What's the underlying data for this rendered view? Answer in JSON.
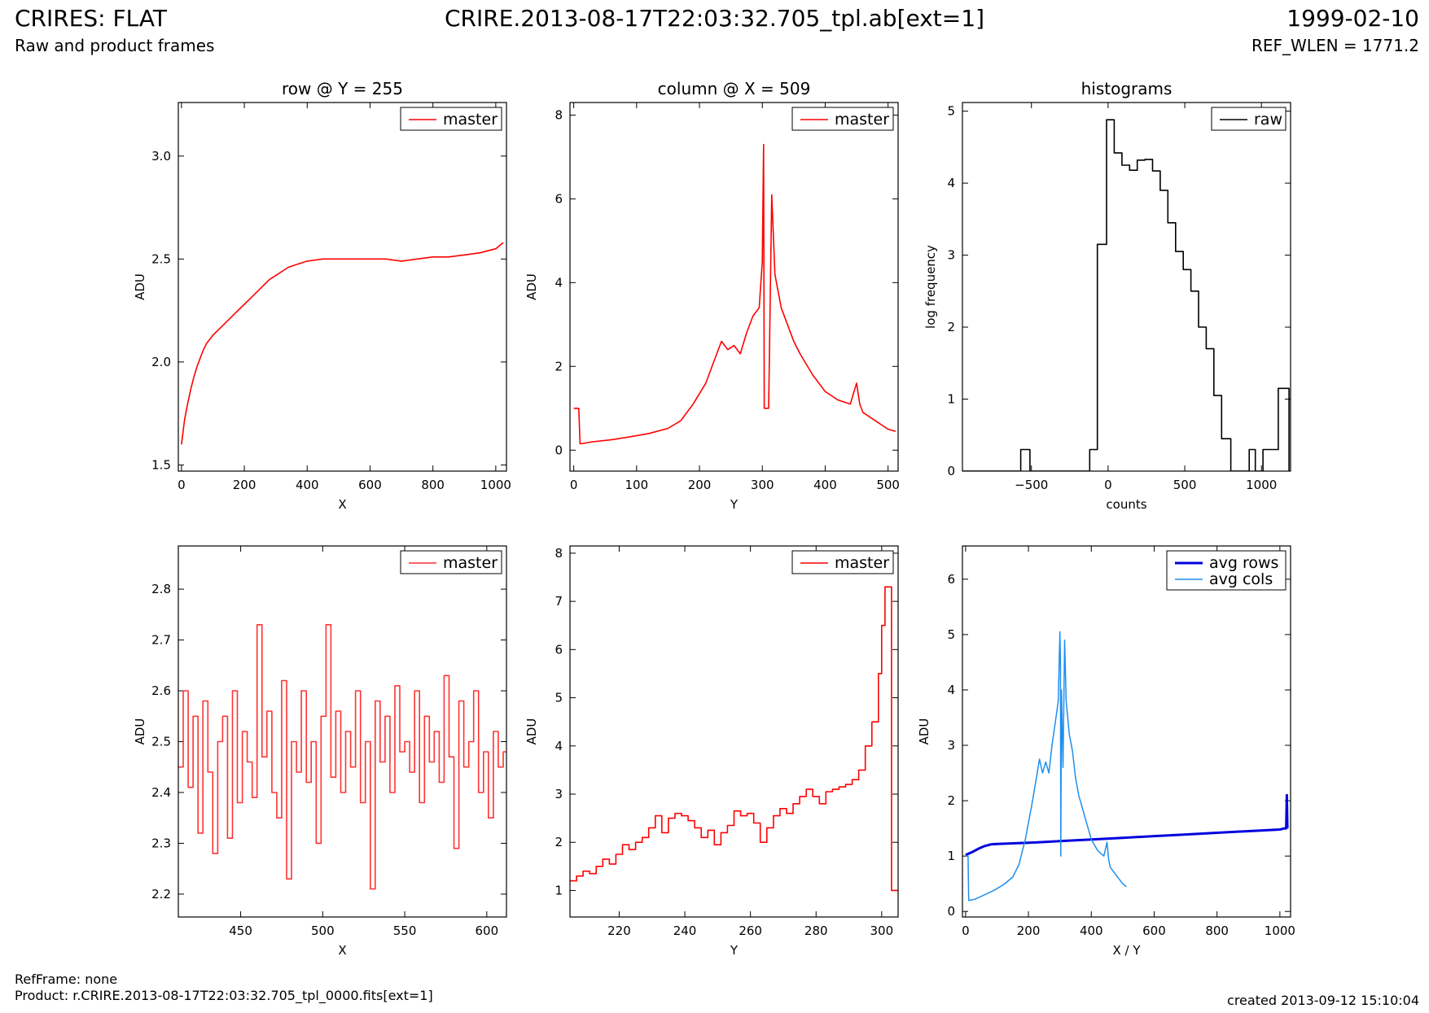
{
  "header": {
    "title": "CRIRES: FLAT",
    "subtitle": "Raw and product frames",
    "file": "CRIRE.2013-08-17T22:03:32.705_tpl.ab[ext=1]",
    "date": "1999-02-10",
    "ref_wlen": "REF_WLEN = 1771.2"
  },
  "footer": {
    "refframe": "RefFrame: none",
    "product": "Product: r.CRIRE.2013-08-17T22:03:32.705_tpl_0000.fits[ext=1]",
    "created": "created 2013-09-12 15:10:04"
  },
  "colors": {
    "master": "#ff0000",
    "master_zoom": "#ff3333",
    "raw": "#000000",
    "avg_rows": "#0000dd",
    "avg_cols": "#1e8fef"
  },
  "chart_data": [
    {
      "type": "line",
      "title": "row @ Y = 255",
      "xlabel": "X",
      "ylabel": "ADU",
      "xlim": [
        -10,
        1034
      ],
      "ylim": [
        1.47,
        3.26
      ],
      "xticks": [
        0,
        200,
        400,
        600,
        800,
        1000
      ],
      "yticks": [
        1.5,
        2.0,
        2.5,
        3.0
      ],
      "ytick_labels": [
        "1.5",
        "2.0",
        "2.5",
        "3.0"
      ],
      "legend": "top-right",
      "series": [
        {
          "name": "master",
          "color": "#ff0000",
          "x": [
            0,
            10,
            20,
            30,
            40,
            50,
            60,
            70,
            80,
            100,
            120,
            140,
            160,
            180,
            200,
            220,
            240,
            260,
            280,
            300,
            320,
            340,
            360,
            380,
            400,
            450,
            500,
            550,
            600,
            650,
            700,
            750,
            800,
            850,
            900,
            950,
            1000,
            1024
          ],
          "y": [
            1.6,
            1.72,
            1.8,
            1.87,
            1.93,
            1.98,
            2.02,
            2.06,
            2.09,
            2.13,
            2.16,
            2.19,
            2.22,
            2.25,
            2.28,
            2.31,
            2.34,
            2.37,
            2.4,
            2.42,
            2.44,
            2.46,
            2.47,
            2.48,
            2.49,
            2.5,
            2.5,
            2.5,
            2.5,
            2.5,
            2.49,
            2.5,
            2.51,
            2.51,
            2.52,
            2.53,
            2.55,
            2.58
          ]
        }
      ]
    },
    {
      "type": "line",
      "title": "column @ X = 509",
      "xlabel": "Y",
      "ylabel": "ADU",
      "xlim": [
        -6,
        516
      ],
      "ylim": [
        -0.5,
        8.3
      ],
      "xticks": [
        0,
        100,
        200,
        300,
        400,
        500
      ],
      "yticks": [
        0,
        2,
        4,
        6,
        8
      ],
      "legend": "top-right",
      "series": [
        {
          "name": "master",
          "color": "#ff0000",
          "x": [
            0,
            8,
            10,
            30,
            60,
            90,
            120,
            150,
            170,
            190,
            210,
            225,
            235,
            245,
            255,
            265,
            275,
            285,
            295,
            300,
            302,
            303,
            305,
            310,
            315,
            320,
            330,
            340,
            350,
            360,
            380,
            400,
            420,
            440,
            450,
            455,
            460,
            480,
            500,
            512
          ],
          "y": [
            1.0,
            1.0,
            0.15,
            0.2,
            0.25,
            0.32,
            0.4,
            0.52,
            0.7,
            1.1,
            1.6,
            2.2,
            2.6,
            2.4,
            2.5,
            2.3,
            2.8,
            3.2,
            3.4,
            4.5,
            7.3,
            1.0,
            1.0,
            1.0,
            6.1,
            4.2,
            3.4,
            3.0,
            2.6,
            2.3,
            1.8,
            1.4,
            1.2,
            1.1,
            1.6,
            1.1,
            0.9,
            0.7,
            0.5,
            0.45
          ]
        }
      ]
    },
    {
      "type": "line",
      "title": "histograms",
      "xlabel": "counts",
      "ylabel": "log frequency",
      "xlim": [
        -950,
        1190
      ],
      "ylim": [
        0,
        5.12
      ],
      "xticks": [
        -500,
        0,
        500,
        1000
      ],
      "xtick_labels": [
        "−500",
        "0",
        "500",
        "1000"
      ],
      "yticks": [
        0,
        1,
        2,
        3,
        4,
        5
      ],
      "legend": "top-right",
      "series": [
        {
          "name": "raw",
          "color": "#000000",
          "step": true,
          "x": [
            -950,
            -570,
            -570,
            -510,
            -510,
            -120,
            -120,
            -70,
            -70,
            -10,
            -10,
            40,
            40,
            90,
            90,
            140,
            140,
            190,
            190,
            240,
            240,
            290,
            290,
            340,
            340,
            390,
            390,
            440,
            440,
            490,
            490,
            540,
            540,
            590,
            590,
            640,
            640,
            690,
            690,
            740,
            740,
            800,
            800,
            920,
            920,
            960,
            960,
            1010,
            1010,
            1110,
            1110,
            1180,
            1180
          ],
          "y": [
            0,
            0,
            0.3,
            0.3,
            0,
            0,
            0.3,
            0.3,
            3.15,
            3.15,
            4.88,
            4.88,
            4.42,
            4.42,
            4.25,
            4.25,
            4.18,
            4.18,
            4.32,
            4.32,
            4.33,
            4.33,
            4.17,
            4.17,
            3.9,
            3.9,
            3.45,
            3.45,
            3.05,
            3.05,
            2.8,
            2.8,
            2.5,
            2.5,
            2.0,
            2.0,
            1.7,
            1.7,
            1.05,
            1.05,
            0.45,
            0.45,
            0,
            0,
            0.3,
            0.3,
            0,
            0,
            0.3,
            0.3,
            1.15,
            1.15,
            0
          ]
        }
      ]
    },
    {
      "type": "line",
      "title": "",
      "xlabel": "X",
      "ylabel": "ADU",
      "xlim": [
        412,
        612
      ],
      "ylim": [
        2.155,
        2.885
      ],
      "xticks": [
        450,
        500,
        550,
        600
      ],
      "yticks": [
        2.2,
        2.3,
        2.4,
        2.5,
        2.6,
        2.7,
        2.8
      ],
      "legend": "top-right",
      "series": [
        {
          "name": "master",
          "color": "#ff3333",
          "step": true,
          "x": [
            412,
            415,
            418,
            421,
            424,
            427,
            430,
            433,
            436,
            439,
            442,
            445,
            448,
            451,
            454,
            457,
            460,
            463,
            466,
            469,
            472,
            475,
            478,
            481,
            484,
            487,
            490,
            493,
            496,
            499,
            502,
            505,
            508,
            511,
            514,
            517,
            520,
            523,
            526,
            529,
            532,
            535,
            538,
            541,
            544,
            547,
            550,
            553,
            556,
            559,
            562,
            565,
            568,
            571,
            574,
            577,
            580,
            583,
            586,
            589,
            592,
            595,
            598,
            601,
            604,
            607,
            610,
            612
          ],
          "y": [
            2.45,
            2.6,
            2.41,
            2.55,
            2.32,
            2.58,
            2.44,
            2.28,
            2.5,
            2.55,
            2.31,
            2.6,
            2.38,
            2.52,
            2.46,
            2.39,
            2.73,
            2.47,
            2.56,
            2.4,
            2.35,
            2.62,
            2.23,
            2.5,
            2.44,
            2.6,
            2.42,
            2.5,
            2.3,
            2.55,
            2.73,
            2.43,
            2.56,
            2.4,
            2.52,
            2.45,
            2.6,
            2.38,
            2.5,
            2.21,
            2.58,
            2.46,
            2.55,
            2.4,
            2.61,
            2.48,
            2.5,
            2.44,
            2.6,
            2.38,
            2.55,
            2.46,
            2.52,
            2.42,
            2.63,
            2.47,
            2.29,
            2.58,
            2.45,
            2.5,
            2.6,
            2.4,
            2.48,
            2.35,
            2.52,
            2.45,
            2.48,
            2.48
          ]
        }
      ]
    },
    {
      "type": "line",
      "title": "",
      "xlabel": "Y",
      "ylabel": "ADU",
      "xlim": [
        205,
        305
      ],
      "ylim": [
        0.45,
        8.15
      ],
      "xticks": [
        220,
        240,
        260,
        280,
        300
      ],
      "yticks": [
        1,
        2,
        3,
        4,
        5,
        6,
        7,
        8
      ],
      "legend": "top-right",
      "series": [
        {
          "name": "master",
          "color": "#ff0000",
          "step": true,
          "x": [
            205,
            207,
            209,
            211,
            213,
            215,
            217,
            219,
            221,
            223,
            225,
            227,
            229,
            231,
            233,
            235,
            237,
            239,
            241,
            243,
            245,
            247,
            249,
            251,
            253,
            255,
            257,
            259,
            261,
            263,
            265,
            267,
            269,
            271,
            273,
            275,
            277,
            279,
            281,
            283,
            285,
            287,
            289,
            291,
            293,
            295,
            297,
            299,
            300,
            301,
            302,
            303,
            304,
            305
          ],
          "y": [
            1.2,
            1.3,
            1.4,
            1.35,
            1.5,
            1.65,
            1.55,
            1.75,
            1.95,
            1.85,
            2.0,
            2.1,
            2.3,
            2.55,
            2.2,
            2.5,
            2.6,
            2.55,
            2.45,
            2.3,
            2.1,
            2.25,
            1.95,
            2.2,
            2.35,
            2.65,
            2.55,
            2.6,
            2.4,
            2.0,
            2.3,
            2.55,
            2.7,
            2.6,
            2.8,
            2.95,
            3.1,
            2.95,
            2.8,
            3.05,
            3.1,
            3.15,
            3.2,
            3.3,
            3.5,
            4.0,
            4.5,
            5.5,
            6.5,
            7.3,
            7.3,
            1.0,
            1.0,
            1.0
          ]
        }
      ]
    },
    {
      "type": "line",
      "title": "",
      "xlabel": "X / Y",
      "ylabel": "ADU",
      "xlim": [
        -10,
        1034
      ],
      "ylim": [
        -0.1,
        6.6
      ],
      "xticks": [
        0,
        200,
        400,
        600,
        800,
        1000
      ],
      "yticks": [
        0,
        1,
        2,
        3,
        4,
        5,
        6
      ],
      "legend": "top-right",
      "series": [
        {
          "name": "avg rows",
          "color": "#0000dd",
          "width": 3,
          "x": [
            0,
            20,
            40,
            60,
            80,
            100,
            150,
            200,
            300,
            400,
            500,
            600,
            700,
            800,
            900,
            1000,
            1015,
            1020,
            1022,
            1024
          ],
          "y": [
            1.02,
            1.07,
            1.13,
            1.18,
            1.21,
            1.22,
            1.23,
            1.24,
            1.27,
            1.3,
            1.33,
            1.36,
            1.39,
            1.42,
            1.45,
            1.48,
            1.5,
            1.5,
            2.1,
            1.5
          ]
        },
        {
          "name": "avg cols",
          "color": "#1e8fef",
          "width": 1.5,
          "x": [
            0,
            8,
            10,
            30,
            60,
            90,
            120,
            150,
            170,
            190,
            210,
            225,
            235,
            245,
            255,
            265,
            275,
            285,
            295,
            300,
            302,
            303,
            305,
            310,
            315,
            320,
            330,
            340,
            350,
            360,
            380,
            400,
            420,
            440,
            450,
            455,
            460,
            480,
            500,
            512
          ],
          "y": [
            1.0,
            1.0,
            0.2,
            0.22,
            0.3,
            0.38,
            0.48,
            0.62,
            0.85,
            1.3,
            1.9,
            2.4,
            2.75,
            2.5,
            2.7,
            2.5,
            3.0,
            3.4,
            3.8,
            5.05,
            4.5,
            1.0,
            4.0,
            2.6,
            4.9,
            3.8,
            3.2,
            2.9,
            2.4,
            2.1,
            1.7,
            1.3,
            1.1,
            1.0,
            1.25,
            0.95,
            0.8,
            0.65,
            0.5,
            0.45
          ]
        }
      ]
    }
  ]
}
